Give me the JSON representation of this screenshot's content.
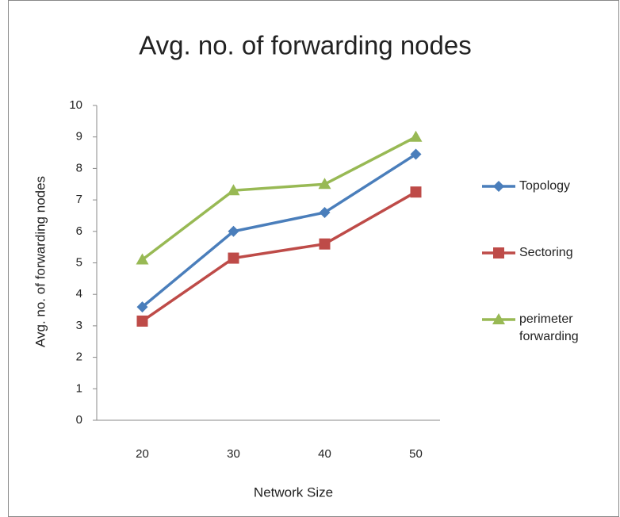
{
  "chart_data": {
    "type": "line",
    "title": "Avg. no. of forwarding nodes",
    "x_label": "Network Size",
    "y_label": "Avg. no. of forwarding nodes",
    "categories": [
      "20",
      "30",
      "40",
      "50"
    ],
    "series": [
      {
        "name": "Topology",
        "color": "#4a7ebb",
        "marker": "diamond",
        "values": [
          3.6,
          6.0,
          6.6,
          8.45
        ]
      },
      {
        "name": "Sectoring",
        "color": "#be4b48",
        "marker": "square",
        "values": [
          3.15,
          5.15,
          5.6,
          7.25
        ]
      },
      {
        "name": "perimeter forwarding",
        "color": "#98b954",
        "marker": "triangle",
        "values": [
          5.1,
          7.3,
          7.5,
          9.0
        ]
      }
    ],
    "ylim": [
      0,
      10
    ],
    "yticks": [
      0,
      1,
      2,
      3,
      4,
      5,
      6,
      7,
      8,
      9,
      10
    ],
    "grid": false,
    "legend": "right"
  }
}
